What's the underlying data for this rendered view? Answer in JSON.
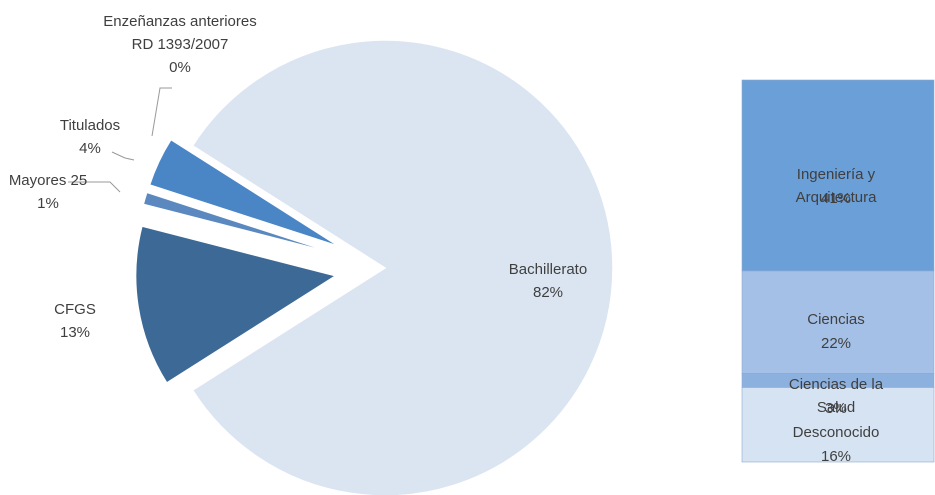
{
  "chart_data": [
    {
      "type": "pie",
      "categories": [
        "Bachillerato",
        "CFGS",
        "Mayores 25",
        "Titulados",
        "Enzeñanzas anteriores\nRD 1393/2007"
      ],
      "values": [
        82,
        13,
        1,
        4,
        0
      ],
      "value_labels": [
        "82%",
        "13%",
        "1%",
        "4%",
        "0%"
      ],
      "colors": [
        "#dbe5f2",
        "#3d6997",
        "#5b89bf",
        "#4a85c6",
        "#6f9bd0"
      ]
    },
    {
      "type": "bar",
      "stacked": true,
      "categories": [
        "Ingeniería y Arquitectura",
        "Ciencias",
        "Ciencias de la Salud",
        "Desconocido"
      ],
      "values": [
        41,
        22,
        3,
        16
      ],
      "value_labels": [
        "41%",
        "22%",
        "3%",
        "16%"
      ],
      "colors": [
        "#6b9fd8",
        "#a4c0e6",
        "#8db1de",
        "#d6e3f3"
      ]
    }
  ]
}
